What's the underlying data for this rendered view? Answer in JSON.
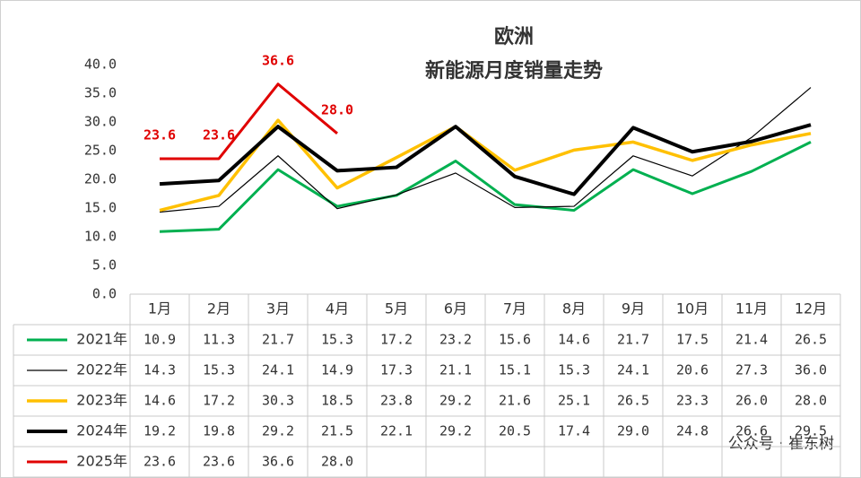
{
  "chart_data": {
    "type": "line",
    "title": "欧洲",
    "subtitle": "新能源月度销量走势",
    "categories": [
      "1月",
      "2月",
      "3月",
      "4月",
      "5月",
      "6月",
      "7月",
      "8月",
      "9月",
      "10月",
      "11月",
      "12月"
    ],
    "ylim": [
      0,
      40
    ],
    "yticks": [
      {
        "value": 0,
        "label": "0.0"
      },
      {
        "value": 5,
        "label": "5.0"
      },
      {
        "value": 10,
        "label": "10.0"
      },
      {
        "value": 15,
        "label": "15.0"
      },
      {
        "value": 20,
        "label": "20.0"
      },
      {
        "value": 25,
        "label": "25.0"
      },
      {
        "value": 30,
        "label": "30.0"
      },
      {
        "value": 35,
        "label": "35.0"
      },
      {
        "value": 40,
        "label": "40.0"
      }
    ],
    "grid": false,
    "series": [
      {
        "name": "2021年",
        "color": "#00b050",
        "values": [
          10.9,
          11.3,
          21.7,
          15.3,
          17.2,
          23.2,
          15.6,
          14.6,
          21.7,
          17.5,
          21.4,
          26.5
        ],
        "value_labels": [
          "10.9",
          "11.3",
          "21.7",
          "15.3",
          "17.2",
          "23.2",
          "15.6",
          "14.6",
          "21.7",
          "17.5",
          "21.4",
          "26.5"
        ]
      },
      {
        "name": "2022年",
        "color": "#000000",
        "values": [
          14.3,
          15.3,
          24.1,
          14.9,
          17.3,
          21.1,
          15.1,
          15.3,
          24.1,
          20.6,
          27.3,
          36.0
        ],
        "value_labels": [
          "14.3",
          "15.3",
          "24.1",
          "14.9",
          "17.3",
          "21.1",
          "15.1",
          "15.3",
          "24.1",
          "20.6",
          "27.3",
          "36.0"
        ]
      },
      {
        "name": "2023年",
        "color": "#ffc000",
        "values": [
          14.6,
          17.2,
          30.3,
          18.5,
          23.8,
          29.2,
          21.6,
          25.1,
          26.5,
          23.3,
          26.0,
          28.0
        ],
        "value_labels": [
          "14.6",
          "17.2",
          "30.3",
          "18.5",
          "23.8",
          "29.2",
          "21.6",
          "25.1",
          "26.5",
          "23.3",
          "26.0",
          "28.0"
        ]
      },
      {
        "name": "2024年",
        "color": "#000000",
        "values": [
          19.2,
          19.8,
          29.2,
          21.5,
          22.1,
          29.2,
          20.5,
          17.4,
          29.0,
          24.8,
          26.6,
          29.5
        ],
        "value_labels": [
          "19.2",
          "19.8",
          "29.2",
          "21.5",
          "22.1",
          "29.2",
          "20.5",
          "17.4",
          "29.0",
          "24.8",
          "26.6",
          "29.5"
        ]
      },
      {
        "name": "2025年",
        "color": "#e00000",
        "values": [
          23.6,
          23.6,
          36.6,
          28.0,
          null,
          null,
          null,
          null,
          null,
          null,
          null,
          null
        ],
        "value_labels": [
          "23.6",
          "23.6",
          "36.6",
          "28.0",
          null,
          null,
          null,
          null,
          null,
          null,
          null,
          null
        ]
      }
    ],
    "watermark": "公众号 · 崔东树"
  }
}
